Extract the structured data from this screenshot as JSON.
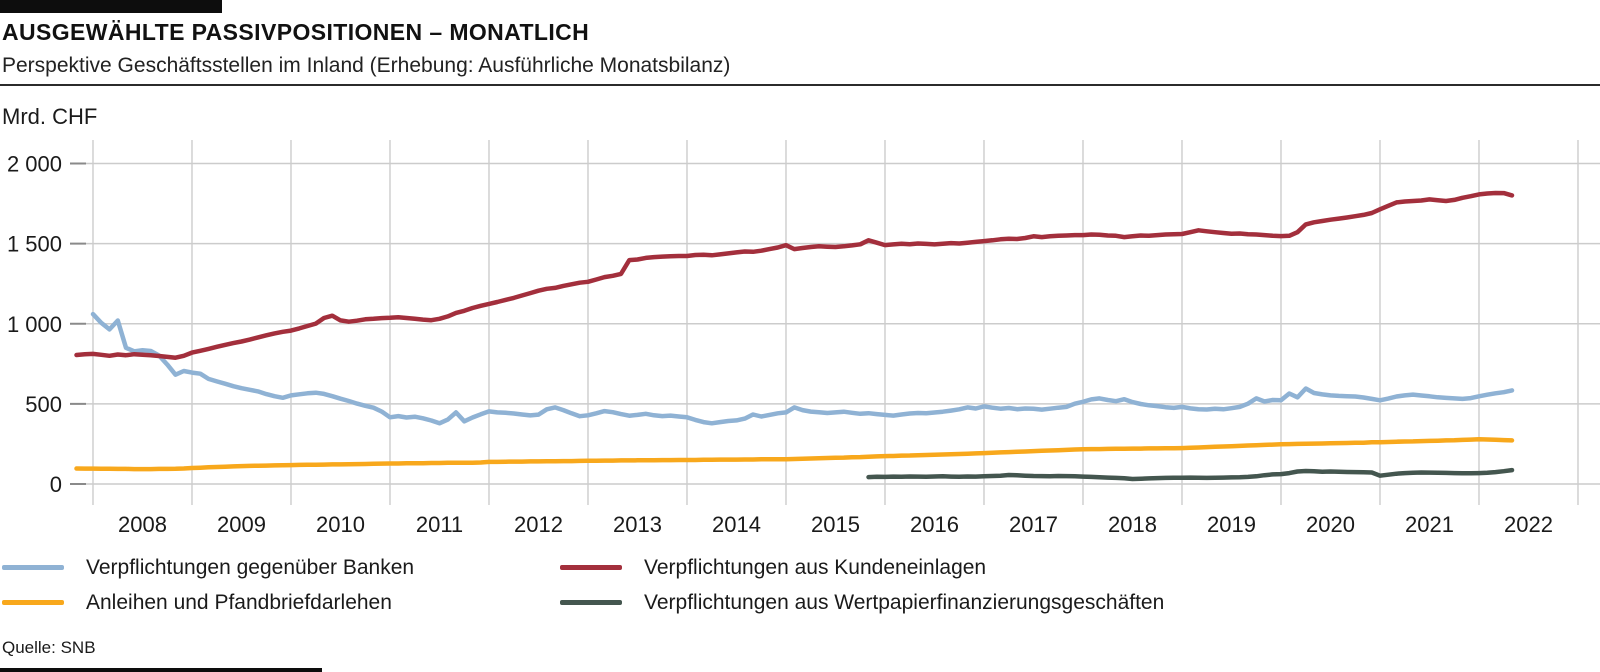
{
  "chart_data": {
    "type": "line",
    "title": "AUSGEWÄHLTE PASSIVPOSITIONEN – MONATLICH",
    "subtitle": "Perspektive Geschäftsstellen im Inland (Erhebung: Ausführliche Monatsbilanz)",
    "unit": "Mrd. CHF",
    "frequency": "monthly",
    "grid": true,
    "legend_position": "bottom",
    "ylim": [
      0,
      2000
    ],
    "y_ticks": [
      {
        "value": 0,
        "label": "0"
      },
      {
        "value": 500,
        "label": "500"
      },
      {
        "value": 1000,
        "label": "1 000"
      },
      {
        "value": 1500,
        "label": "1 500"
      },
      {
        "value": 2000,
        "label": "2 000"
      }
    ],
    "x_tick_years": [
      "2008",
      "2009",
      "2010",
      "2011",
      "2012",
      "2013",
      "2014",
      "2015",
      "2016",
      "2017",
      "2018",
      "2019",
      "2020",
      "2021",
      "2022"
    ],
    "x_start": "2007-11",
    "x_end": "2022-05",
    "series": [
      {
        "id": "banken",
        "name": "Verpflichtungen gegenüber Banken",
        "color": "#8FB2D4",
        "start": "2008-01",
        "values": [
          1060,
          1005,
          965,
          1020,
          850,
          828,
          835,
          830,
          802,
          745,
          682,
          705,
          695,
          688,
          656,
          640,
          626,
          610,
          598,
          588,
          578,
          561,
          548,
          538,
          553,
          560,
          566,
          570,
          562,
          548,
          532,
          518,
          502,
          488,
          476,
          452,
          416,
          424,
          415,
          420,
          410,
          396,
          379,
          402,
          447,
          391,
          415,
          435,
          453,
          447,
          444,
          440,
          434,
          428,
          433,
          466,
          478,
          461,
          441,
          423,
          429,
          441,
          455,
          448,
          436,
          426,
          431,
          438,
          429,
          424,
          427,
          421,
          416,
          400,
          386,
          379,
          386,
          393,
          397,
          408,
          434,
          421,
          431,
          441,
          447,
          478,
          461,
          452,
          448,
          443,
          447,
          451,
          444,
          438,
          442,
          436,
          431,
          427,
          434,
          440,
          443,
          441,
          446,
          451,
          458,
          466,
          478,
          471,
          484,
          476,
          470,
          474,
          467,
          471,
          469,
          464,
          470,
          476,
          481,
          501,
          513,
          528,
          534,
          524,
          517,
          529,
          511,
          499,
          491,
          486,
          479,
          475,
          481,
          472,
          467,
          465,
          470,
          466,
          473,
          481,
          501,
          534,
          515,
          524,
          522,
          565,
          541,
          596,
          568,
          559,
          553,
          550,
          548,
          546,
          540,
          531,
          522,
          533,
          546,
          553,
          558,
          552,
          547,
          541,
          537,
          534,
          531,
          536,
          547,
          557,
          566,
          573,
          584
        ]
      },
      {
        "id": "kundeneinlagen",
        "name": "Verpflichtungen aus Kundeneinlagen",
        "color": "#A32F3C",
        "start": "2007-11",
        "values": [
          805,
          810,
          812,
          806,
          800,
          808,
          804,
          810,
          807,
          804,
          799,
          793,
          788,
          800,
          820,
          831,
          843,
          856,
          868,
          879,
          889,
          901,
          915,
          928,
          940,
          950,
          957,
          971,
          986,
          1001,
          1036,
          1050,
          1021,
          1013,
          1019,
          1028,
          1031,
          1035,
          1037,
          1041,
          1036,
          1031,
          1026,
          1022,
          1031,
          1046,
          1068,
          1081,
          1098,
          1112,
          1124,
          1136,
          1149,
          1161,
          1176,
          1191,
          1206,
          1218,
          1224,
          1236,
          1246,
          1256,
          1262,
          1276,
          1291,
          1299,
          1311,
          1397,
          1401,
          1411,
          1416,
          1419,
          1421,
          1423,
          1423,
          1429,
          1431,
          1427,
          1433,
          1439,
          1445,
          1451,
          1449,
          1456,
          1466,
          1476,
          1490,
          1466,
          1473,
          1479,
          1483,
          1481,
          1479,
          1483,
          1489,
          1496,
          1521,
          1506,
          1491,
          1495,
          1499,
          1496,
          1501,
          1498,
          1495,
          1499,
          1503,
          1501,
          1506,
          1511,
          1516,
          1521,
          1527,
          1531,
          1529,
          1535,
          1546,
          1541,
          1546,
          1549,
          1551,
          1553,
          1553,
          1557,
          1555,
          1551,
          1549,
          1541,
          1546,
          1551,
          1549,
          1553,
          1557,
          1559,
          1560,
          1571,
          1583,
          1577,
          1571,
          1566,
          1561,
          1563,
          1559,
          1557,
          1553,
          1549,
          1547,
          1549,
          1571,
          1620,
          1633,
          1641,
          1649,
          1656,
          1663,
          1671,
          1679,
          1691,
          1714,
          1736,
          1757,
          1763,
          1766,
          1769,
          1776,
          1771,
          1766,
          1773,
          1786,
          1796,
          1807,
          1813,
          1816,
          1815,
          1801
        ]
      },
      {
        "id": "anleihen",
        "name": "Anleihen und Pfandbriefdarlehen",
        "color": "#F8A81C",
        "start": "2007-11",
        "values": [
          97,
          96,
          96,
          95,
          95,
          94,
          94,
          93,
          93,
          93,
          94,
          94,
          95,
          97,
          100,
          102,
          104,
          106,
          108,
          110,
          112,
          113,
          114,
          115,
          116,
          117,
          118,
          119,
          120,
          120,
          121,
          122,
          122,
          123,
          124,
          125,
          126,
          127,
          128,
          128,
          129,
          130,
          130,
          131,
          131,
          132,
          132,
          133,
          133,
          134,
          138,
          138,
          139,
          140,
          140,
          141,
          141,
          142,
          142,
          143,
          143,
          144,
          145,
          145,
          146,
          146,
          147,
          147,
          148,
          148,
          148,
          149,
          149,
          150,
          150,
          150,
          151,
          151,
          152,
          152,
          152,
          153,
          153,
          154,
          154,
          155,
          155,
          156,
          158,
          159,
          161,
          162,
          164,
          165,
          167,
          168,
          170,
          172,
          174,
          175,
          177,
          178,
          180,
          181,
          183,
          184,
          186,
          187,
          189,
          191,
          193,
          195,
          197,
          199,
          201,
          203,
          205,
          207,
          209,
          211,
          213,
          215,
          217,
          218,
          218,
          219,
          220,
          220,
          221,
          221,
          222,
          222,
          223,
          223,
          224,
          226,
          228,
          230,
          232,
          234,
          236,
          238,
          240,
          242,
          244,
          246,
          248,
          249,
          250,
          251,
          252,
          253,
          254,
          255,
          256,
          257,
          258,
          260,
          261,
          262,
          264,
          265,
          266,
          268,
          269,
          270,
          272,
          273,
          275,
          277,
          279,
          278,
          276,
          274,
          272
        ]
      },
      {
        "id": "wertpapier",
        "name": "Verpflichtungen aus Wertpapierfinanzierungsgeschäften",
        "color": "#44564F",
        "start": "2015-11",
        "values": [
          43,
          45,
          44,
          46,
          45,
          47,
          46,
          45,
          47,
          48,
          46,
          45,
          47,
          46,
          48,
          50,
          52,
          56,
          54,
          52,
          50,
          49,
          48,
          50,
          49,
          48,
          46,
          44,
          42,
          40,
          38,
          36,
          31,
          33,
          35,
          37,
          38,
          39,
          39,
          40,
          39,
          38,
          39,
          40,
          41,
          42,
          44,
          48,
          55,
          60,
          62,
          68,
          78,
          81,
          79,
          77,
          78,
          76,
          75,
          74,
          73,
          72,
          52,
          58,
          64,
          68,
          70,
          72,
          71,
          70,
          69,
          68,
          67,
          67,
          68,
          70,
          74,
          80,
          87
        ]
      }
    ]
  },
  "footer": {
    "source": "Quelle: SNB"
  }
}
